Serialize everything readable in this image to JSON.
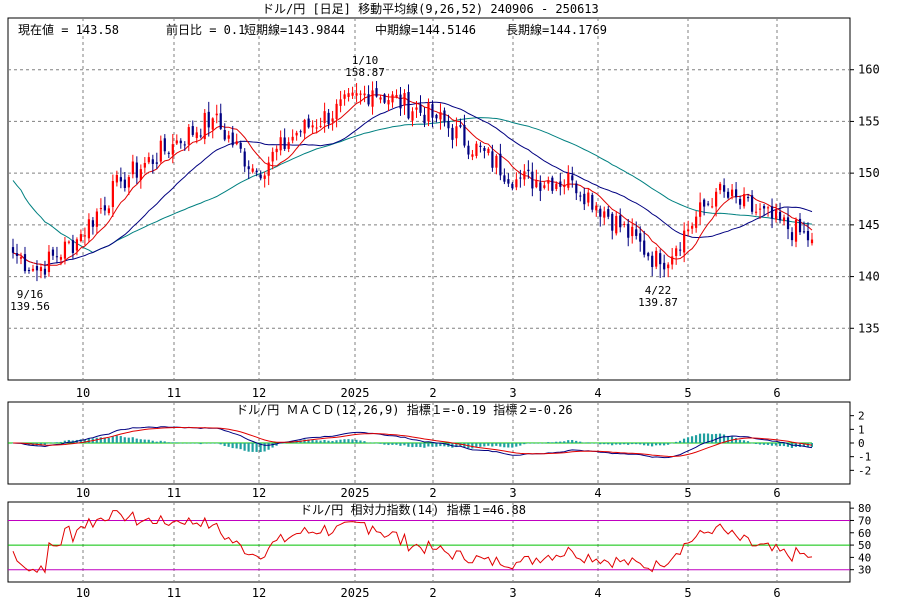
{
  "title": "ドル/円 [日足] 移動平均線(9,26,52) 240906 - 250613",
  "info": {
    "current": "現在値 = 143.58",
    "change": "前日比 = 0.1",
    "short": "短期線=143.9844",
    "mid": "中期線=144.5146",
    "long": "長期線=144.1769"
  },
  "colors": {
    "bull": "#ff0000",
    "bear": "#000080",
    "short_ma": "#e00000",
    "mid_ma": "#000080",
    "long_ma": "#008080",
    "macd": "#000080",
    "signal": "#e00000",
    "hist": "#20a0a0",
    "rsi": "#e00000",
    "guide70": "#c000c0",
    "guide50": "#00c000"
  },
  "x_labels": [
    "10",
    "11",
    "12",
    "2025",
    "2",
    "3",
    "4",
    "5",
    "6"
  ],
  "chart_data": [
    {
      "type": "candlestick",
      "title": "ドル/円 [日足] 移動平均線(9,26,52) 240906 - 250613",
      "ylim": [
        130,
        165
      ],
      "y_ticks": [
        135,
        140,
        145,
        150,
        155,
        160
      ],
      "y_tick_labels": [
        "135",
        "140",
        "145",
        "150",
        "155",
        "160"
      ],
      "x_months": [
        "10",
        "11",
        "12",
        "2025",
        "2",
        "3",
        "4",
        "5",
        "6"
      ],
      "ohlc_anchors": [
        {
          "date": "240906",
          "close": 142.3
        },
        {
          "date": "240916",
          "close": 140.6,
          "low": 139.56
        },
        {
          "date": "240930",
          "close": 143.6
        },
        {
          "date": "241015",
          "close": 149.2
        },
        {
          "date": "241101",
          "close": 152.8
        },
        {
          "date": "241115",
          "close": 155.3
        },
        {
          "date": "241202",
          "close": 150.1
        },
        {
          "date": "241216",
          "close": 153.9
        },
        {
          "date": "250110",
          "close": 158.0,
          "high": 158.87
        },
        {
          "date": "250203",
          "close": 155.3
        },
        {
          "date": "250303",
          "close": 149.4
        },
        {
          "date": "250321",
          "close": 149.3
        },
        {
          "date": "250422",
          "close": 141.2,
          "low": 139.87
        },
        {
          "date": "250512",
          "close": 148.2
        },
        {
          "date": "250613",
          "close": 143.58
        }
      ],
      "annotations": [
        {
          "label": "9/16",
          "value": "139.56"
        },
        {
          "label": "1/10",
          "value": "158.87"
        },
        {
          "label": "4/22",
          "value": "139.87"
        }
      ],
      "series": [
        {
          "name": "短期線",
          "period": 9,
          "last": 143.9844
        },
        {
          "name": "中期線",
          "period": 26,
          "last": 144.5146
        },
        {
          "name": "長期線",
          "period": 52,
          "last": 144.1769
        }
      ]
    },
    {
      "type": "line",
      "title": "ドル/円 ＭＡＣＤ(12,26,9) 指標１=-0.19 指標２=-0.26",
      "ylim": [
        -3,
        3
      ],
      "y_ticks": [
        2,
        1,
        0,
        -1,
        -2
      ],
      "y_tick_labels": [
        "2",
        "1",
        "0",
        "-1",
        "-2"
      ],
      "series": [
        {
          "name": "指標１",
          "last": -0.19
        },
        {
          "name": "指標２",
          "last": -0.26
        }
      ]
    },
    {
      "type": "line",
      "title": "ドル/円 相対力指数(14) 指標１=46.88",
      "ylim": [
        20,
        85
      ],
      "y_ticks": [
        80,
        70,
        60,
        50,
        40,
        30
      ],
      "y_tick_labels": [
        "80",
        "70",
        "60",
        "50",
        "40",
        "30"
      ],
      "guides": [
        70,
        50,
        30
      ],
      "series": [
        {
          "name": "指標１",
          "last": 46.88
        }
      ]
    }
  ]
}
